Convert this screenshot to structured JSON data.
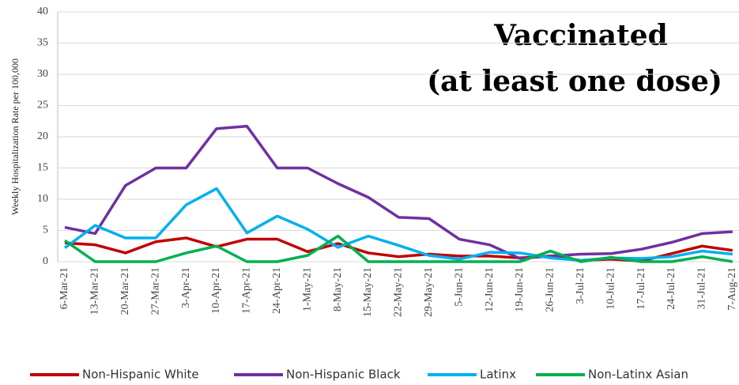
{
  "chart_data": {
    "type": "line",
    "title": "Vaccinated",
    "subtitle": "(at least one dose)",
    "y_label": "Weekly Hospitalization Rate per 100,000",
    "categories": [
      "6-Mar-21",
      "13-Mar-21",
      "20-Mar-21",
      "27-Mar-21",
      "3-Apr-21",
      "10-Apr-21",
      "17-Apr-21",
      "24-Apr-21",
      "1-May-21",
      "8-May-21",
      "15-May-21",
      "22-May-21",
      "29-May-21",
      "5-Jun-21",
      "12-Jun-21",
      "19-Jun-21",
      "26-Jun-21",
      "3-Jul-21",
      "10-Jul-21",
      "17-Jul-21",
      "24-Jul-21",
      "31-Jul-21",
      "7-Aug-21"
    ],
    "series": [
      {
        "name": "Non-Hispanic White",
        "color": "#c00000",
        "values": [
          3,
          2.7,
          1.4,
          3.2,
          3.8,
          2.4,
          3.6,
          3.6,
          1.6,
          2.9,
          1.4,
          0.8,
          1.2,
          0.9,
          0.9,
          0.6,
          0.9,
          0.2,
          0.4,
          0.1,
          1.3,
          2.5,
          1.8
        ]
      },
      {
        "name": "Non-Hispanic Black",
        "color": "#7030a0",
        "values": [
          5.5,
          4.5,
          12.2,
          15,
          15,
          21.3,
          21.7,
          15,
          15,
          12.5,
          10.3,
          7.1,
          6.9,
          3.6,
          2.7,
          0.5,
          0.9,
          1.2,
          1.3,
          2,
          3.1,
          4.5,
          4.8
        ]
      },
      {
        "name": "Latinx",
        "color": "#00b0f0",
        "values": [
          2.2,
          5.8,
          3.8,
          3.8,
          9.1,
          11.7,
          4.6,
          7.3,
          5.2,
          2.3,
          4.1,
          2.6,
          1,
          0.4,
          1.5,
          1.4,
          0.6,
          0.2,
          0.6,
          0.5,
          0.8,
          1.7,
          1.2
        ]
      },
      {
        "name": "Non-Latinx Asian",
        "color": "#00b050",
        "values": [
          3.4,
          0,
          0,
          0,
          1.4,
          2.5,
          0,
          0,
          1,
          4.1,
          0,
          0,
          0,
          0,
          0,
          0,
          1.7,
          0,
          0.7,
          0,
          0,
          0.8,
          0
        ]
      }
    ],
    "ylim": [
      0,
      40
    ],
    "yticks": [
      0,
      5,
      10,
      15,
      20,
      25,
      30,
      35,
      40
    ],
    "grid": true,
    "legend": "bottom"
  }
}
